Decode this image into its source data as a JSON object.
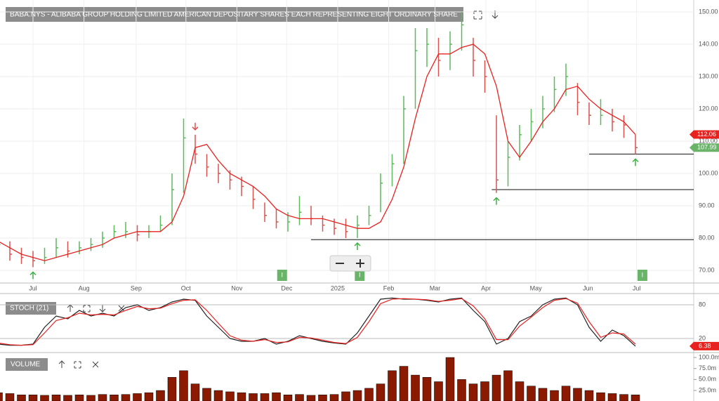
{
  "chart_data": [
    {
      "type": "ohlc",
      "title": "BABA.NYS - ALIBABA GROUP HOLDING LIMITED AMERICAN DEPOSITARY SHARES EACH REPRESENTING EIGHT ORDINARY SHARE",
      "x": [
        0,
        1,
        2,
        3,
        4,
        5,
        6,
        7,
        8,
        9,
        10,
        11,
        12,
        13,
        14,
        15,
        16,
        17,
        18,
        19,
        20,
        21,
        22,
        23,
        24,
        25,
        26,
        27,
        28,
        29,
        30,
        31,
        32,
        33,
        34,
        35,
        36,
        37,
        38,
        39,
        40,
        41,
        42,
        43,
        44,
        45,
        46,
        47,
        48,
        49,
        50,
        51,
        52,
        53,
        54,
        55
      ],
      "high": [
        80,
        79,
        77,
        76,
        77,
        80,
        79,
        79,
        80,
        82,
        84,
        85,
        84,
        84,
        87,
        100,
        117,
        112,
        106,
        103,
        101,
        99,
        96,
        91,
        89,
        88,
        93,
        90,
        87,
        86,
        86,
        87,
        90,
        100,
        106,
        124,
        145,
        145,
        142,
        144,
        150,
        142,
        135,
        118,
        110,
        115,
        120,
        124,
        130,
        134,
        128,
        122,
        123,
        120,
        118,
        112
      ],
      "low": [
        76,
        73,
        72,
        71,
        72,
        74,
        74,
        75,
        76,
        77,
        80,
        80,
        79,
        80,
        82,
        84,
        94,
        103,
        99,
        97,
        95,
        93,
        89,
        85,
        83,
        82,
        84,
        84,
        82,
        81,
        80,
        80,
        84,
        88,
        96,
        103,
        120,
        133,
        130,
        132,
        138,
        130,
        125,
        94,
        96,
        104,
        110,
        114,
        119,
        124,
        118,
        115,
        115,
        113,
        111,
        106
      ],
      "close": [
        78,
        75,
        74,
        73,
        74,
        77,
        76,
        77,
        78,
        80,
        82,
        82,
        81,
        82,
        84,
        95,
        111,
        106,
        102,
        100,
        98,
        96,
        92,
        87,
        85,
        85,
        88,
        86,
        84,
        83,
        82,
        84,
        87,
        97,
        103,
        120,
        138,
        140,
        135,
        140,
        146,
        135,
        130,
        98,
        105,
        112,
        116,
        120,
        126,
        130,
        122,
        118,
        118,
        116,
        115,
        107.99
      ],
      "ma": {
        "color": "#e8221f",
        "values": [
          79,
          77,
          75,
          74,
          73,
          74,
          75,
          76,
          77,
          78,
          80,
          81,
          82,
          82,
          82,
          85,
          93,
          108,
          109,
          104,
          100,
          98,
          96,
          93,
          89,
          87,
          86,
          86,
          86,
          85,
          84,
          83,
          83,
          85,
          92,
          102,
          117,
          130,
          137,
          137,
          139,
          140,
          137,
          127,
          110,
          105,
          110,
          116,
          120,
          126,
          127,
          123,
          120,
          118,
          116,
          112.06
        ]
      },
      "up_color": "#5cb85c",
      "down_color": "#d9534f",
      "xlim": [
        0,
        59.8
      ],
      "xticks": [
        {
          "value": 3,
          "label": "Jul"
        },
        {
          "value": 7.4,
          "label": "Aug"
        },
        {
          "value": 11.9,
          "label": "Sep"
        },
        {
          "value": 16.2,
          "label": "Oct"
        },
        {
          "value": 20.6,
          "label": "Nov"
        },
        {
          "value": 24.9,
          "label": "Dec"
        },
        {
          "value": 29.3,
          "label": "2025"
        },
        {
          "value": 33.7,
          "label": "Feb"
        },
        {
          "value": 37.7,
          "label": "Mar"
        },
        {
          "value": 42.1,
          "label": "Apr"
        },
        {
          "value": 46.4,
          "label": "May"
        },
        {
          "value": 50.9,
          "label": "Jun"
        },
        {
          "value": 55.1,
          "label": "Jul"
        }
      ],
      "ylim": [
        66,
        153
      ],
      "yticks": [
        {
          "value": 70,
          "label": "70.00"
        },
        {
          "value": 80,
          "label": "80.00"
        },
        {
          "value": 90,
          "label": "90.00"
        },
        {
          "value": 100,
          "label": "100.00"
        },
        {
          "value": 110,
          "label": "110.00"
        },
        {
          "value": 120,
          "label": "120.00"
        },
        {
          "value": 130,
          "label": "130.00"
        },
        {
          "value": 140,
          "label": "140.00"
        },
        {
          "value": 150,
          "label": "150.00"
        }
      ],
      "hlines": [
        {
          "value": 79.5,
          "from": 27
        },
        {
          "value": 95,
          "from": 42.6
        },
        {
          "value": 106,
          "from": 51
        }
      ],
      "signals": [
        {
          "x": 3,
          "direction": "up"
        },
        {
          "x": 17,
          "direction": "down"
        },
        {
          "x": 31,
          "direction": "up"
        },
        {
          "x": 43,
          "direction": "up"
        },
        {
          "x": 55,
          "direction": "up"
        }
      ],
      "events": [
        {
          "x": 24.5,
          "label": "I"
        },
        {
          "x": 31.2,
          "label": "I"
        },
        {
          "x": 55.6,
          "label": "I"
        }
      ],
      "grid": true
    },
    {
      "type": "line",
      "title": "STOCH (21)",
      "series": [
        {
          "color": "#222222",
          "values": [
            10,
            8,
            8,
            10,
            40,
            60,
            55,
            70,
            60,
            65,
            60,
            75,
            80,
            70,
            75,
            85,
            90,
            88,
            60,
            40,
            20,
            15,
            15,
            20,
            10,
            15,
            25,
            20,
            15,
            12,
            10,
            30,
            60,
            90,
            92,
            90,
            90,
            88,
            85,
            90,
            92,
            70,
            50,
            10,
            20,
            50,
            60,
            80,
            90,
            92,
            80,
            40,
            15,
            35,
            25,
            6.38
          ]
        },
        {
          "color": "#e8221f",
          "values": [
            12,
            9,
            8,
            9,
            30,
            52,
            57,
            65,
            62,
            63,
            62,
            70,
            77,
            73,
            74,
            82,
            88,
            89,
            70,
            47,
            25,
            17,
            15,
            18,
            13,
            14,
            22,
            21,
            17,
            13,
            11,
            22,
            50,
            82,
            90,
            91,
            90,
            89,
            86,
            88,
            91,
            78,
            55,
            18,
            18,
            42,
            58,
            75,
            88,
            91,
            83,
            50,
            22,
            30,
            28,
            10
          ]
        }
      ],
      "ylim": [
        0,
        100
      ],
      "yticks": [
        20,
        80
      ]
    },
    {
      "type": "bar",
      "title": "VOLUME",
      "color": "#8b1a00",
      "values": [
        20,
        18,
        15,
        15,
        14,
        15,
        14,
        15,
        14,
        16,
        15,
        16,
        18,
        20,
        25,
        55,
        70,
        40,
        30,
        25,
        22,
        20,
        18,
        18,
        20,
        15,
        16,
        14,
        15,
        16,
        22,
        25,
        30,
        40,
        70,
        80,
        60,
        55,
        45,
        100,
        50,
        40,
        45,
        60,
        70,
        45,
        35,
        30,
        25,
        35,
        30,
        25,
        20,
        18,
        16,
        15
      ],
      "ylim": [
        0,
        105
      ],
      "yticks": [
        {
          "value": 25,
          "label": "25.0m"
        },
        {
          "value": 50,
          "label": "50.0m"
        },
        {
          "value": 75,
          "label": "75.0m"
        },
        {
          "value": 100,
          "label": "100.0m"
        }
      ]
    }
  ]
}
